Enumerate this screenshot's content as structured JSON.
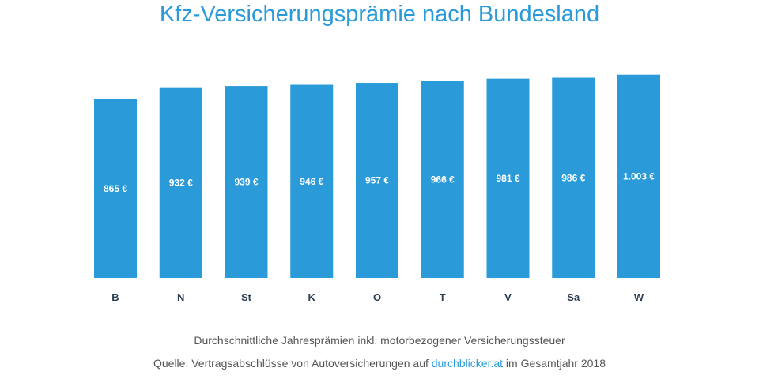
{
  "chart_data": {
    "type": "bar",
    "title": "Kfz-Versicherungsprämie nach Bundesland",
    "categories": [
      "B",
      "N",
      "St",
      "K",
      "O",
      "T",
      "V",
      "Sa",
      "W"
    ],
    "values": [
      865,
      932,
      939,
      946,
      957,
      966,
      981,
      986,
      1003
    ],
    "value_labels": [
      "865 €",
      "932 €",
      "939 €",
      "946 €",
      "957 €",
      "966 €",
      "981 €",
      "986 €",
      "1.003 €"
    ],
    "xlabel": "",
    "ylabel": "",
    "grid": false,
    "bar_color": "#2a9bd8",
    "label_color": "#ffffff",
    "category_color": "#2d3e50"
  },
  "notes": {
    "subtitle": "Durchschnittliche Jahresprämien inkl. motorbezogener Versicherungssteuer",
    "source_prefix": "Quelle: Vertragsabschlüsse von Autoversicherungen auf ",
    "source_link": "durchblicker.at",
    "source_suffix": " im Gesamtjahr 2018"
  }
}
